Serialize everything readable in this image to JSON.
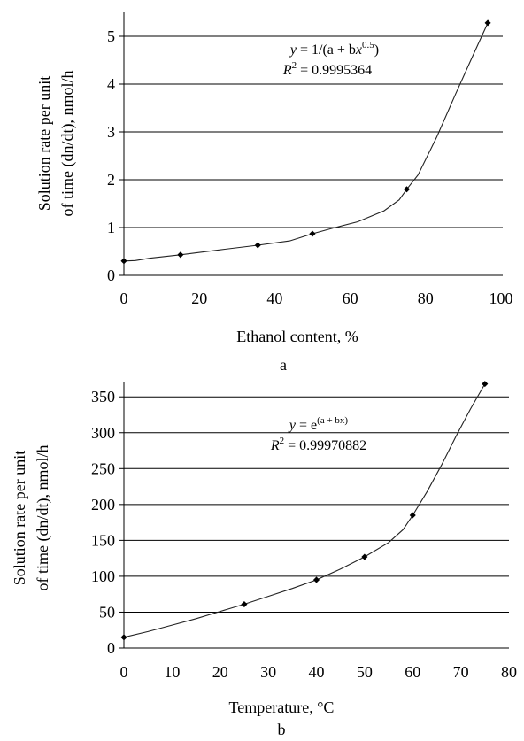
{
  "chart_data": [
    {
      "type": "scatter",
      "panel": "a",
      "xlabel": "Ethanol content, %",
      "ylabel_line1": "Solution rate per unit",
      "ylabel_line2": "of time (dn/dt), nmol/h",
      "xlim": [
        0,
        100
      ],
      "ylim": [
        0,
        5.5
      ],
      "xticks": [
        0,
        20,
        40,
        60,
        80,
        100
      ],
      "yticks": [
        0,
        1,
        2,
        3,
        4,
        5
      ],
      "grid": "horizontal",
      "points": [
        {
          "x": 0,
          "y": 0.3
        },
        {
          "x": 15,
          "y": 0.43
        },
        {
          "x": 35.5,
          "y": 0.63
        },
        {
          "x": 50,
          "y": 0.87
        },
        {
          "x": 75,
          "y": 1.8
        },
        {
          "x": 96.5,
          "y": 5.28
        }
      ],
      "fit_curve": [
        {
          "x": 0,
          "y": 0.3
        },
        {
          "x": 3,
          "y": 0.31
        },
        {
          "x": 7,
          "y": 0.36
        },
        {
          "x": 15,
          "y": 0.43
        },
        {
          "x": 25,
          "y": 0.53
        },
        {
          "x": 35.5,
          "y": 0.63
        },
        {
          "x": 44,
          "y": 0.72
        },
        {
          "x": 50,
          "y": 0.87
        },
        {
          "x": 56,
          "y": 1.0
        },
        {
          "x": 62,
          "y": 1.12
        },
        {
          "x": 69,
          "y": 1.35
        },
        {
          "x": 73,
          "y": 1.58
        },
        {
          "x": 75,
          "y": 1.8
        },
        {
          "x": 78,
          "y": 2.1
        },
        {
          "x": 83,
          "y": 2.9
        },
        {
          "x": 88,
          "y": 3.8
        },
        {
          "x": 92,
          "y": 4.5
        },
        {
          "x": 96.5,
          "y": 5.28
        }
      ],
      "equation_prefix": "y = 1/(a + bx",
      "equation_exponent": "0.5",
      "equation_suffix": ")",
      "r2_prefix": "R",
      "r2_exponent": "2",
      "r2_value": " = 0.9995364"
    },
    {
      "type": "scatter",
      "panel": "b",
      "xlabel": "Temperature, °C",
      "ylabel_line1": "Solution rate per unit",
      "ylabel_line2": "of time (dn/dt), nmol/h",
      "xlim": [
        0,
        80
      ],
      "ylim": [
        0,
        370
      ],
      "xticks": [
        0,
        10,
        20,
        30,
        40,
        50,
        60,
        70,
        80
      ],
      "yticks": [
        0,
        50,
        100,
        150,
        200,
        250,
        300,
        350
      ],
      "grid": "horizontal",
      "points": [
        {
          "x": 0,
          "y": 15
        },
        {
          "x": 25,
          "y": 61
        },
        {
          "x": 40,
          "y": 95
        },
        {
          "x": 50,
          "y": 127
        },
        {
          "x": 60,
          "y": 185
        },
        {
          "x": 75,
          "y": 368
        }
      ],
      "fit_curve": [
        {
          "x": 0,
          "y": 15
        },
        {
          "x": 5,
          "y": 23
        },
        {
          "x": 10,
          "y": 32
        },
        {
          "x": 15,
          "y": 41
        },
        {
          "x": 20,
          "y": 51
        },
        {
          "x": 25,
          "y": 61
        },
        {
          "x": 30,
          "y": 72
        },
        {
          "x": 35,
          "y": 83
        },
        {
          "x": 40,
          "y": 95
        },
        {
          "x": 45,
          "y": 110
        },
        {
          "x": 50,
          "y": 127
        },
        {
          "x": 55,
          "y": 147
        },
        {
          "x": 58,
          "y": 165
        },
        {
          "x": 60,
          "y": 185
        },
        {
          "x": 63,
          "y": 218
        },
        {
          "x": 66,
          "y": 255
        },
        {
          "x": 69,
          "y": 295
        },
        {
          "x": 72,
          "y": 333
        },
        {
          "x": 75,
          "y": 368
        }
      ],
      "equation_prefix": "y = e",
      "equation_exponent": "(a + bx)",
      "equation_suffix": "",
      "r2_prefix": "R",
      "r2_exponent": "2",
      "r2_value": " = 0.99970882"
    }
  ]
}
